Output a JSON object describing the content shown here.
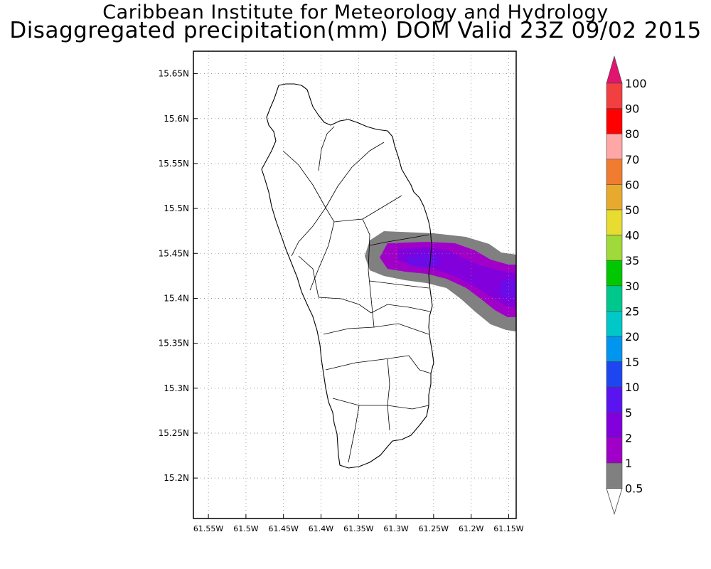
{
  "header": {
    "institute": "Caribbean Institute for Meteorology and Hydrology",
    "product": "Disaggregated precipitation(mm) DOM Valid 23Z 09/02 2015"
  },
  "map": {
    "lat_ticks": [
      "15.65N",
      "15.6N",
      "15.55N",
      "15.5N",
      "15.45N",
      "15.4N",
      "15.35N",
      "15.3N",
      "15.25N",
      "15.2N"
    ],
    "lon_ticks": [
      "61.55W",
      "61.5W",
      "61.45W",
      "61.4W",
      "61.35W",
      "61.3W",
      "61.25W",
      "61.2W",
      "61.15W"
    ],
    "lat_values": [
      15.65,
      15.6,
      15.55,
      15.5,
      15.45,
      15.4,
      15.35,
      15.3,
      15.25,
      15.2
    ],
    "lon_values": [
      -61.55,
      -61.5,
      -61.45,
      -61.4,
      -61.35,
      -61.3,
      -61.25,
      -61.2,
      -61.15
    ],
    "extent": {
      "lon": [
        -61.57,
        -61.14
      ],
      "lat": [
        15.155,
        15.675
      ]
    },
    "grid": "dotted"
  },
  "legend": {
    "labels": [
      "100",
      "90",
      "80",
      "70",
      "60",
      "50",
      "40",
      "35",
      "30",
      "25",
      "20",
      "15",
      "10",
      "5",
      "2",
      "1",
      "0.5"
    ],
    "colors": [
      "#e0156f",
      "#f23f3f",
      "#ff0000",
      "#ffa6a6",
      "#ef7c2f",
      "#e8aa2e",
      "#e8dc30",
      "#9fda3a",
      "#00c800",
      "#00c88c",
      "#00c8c8",
      "#0096f0",
      "#1e46f0",
      "#5a14f0",
      "#8200dc",
      "#a000c8",
      "#808080",
      "#ffffff"
    ]
  },
  "colors": {
    "gray_band": "#808080",
    "purple_band": "#a000c8",
    "violet_band": "#8200dc",
    "blue_band": "#5a14f0"
  }
}
